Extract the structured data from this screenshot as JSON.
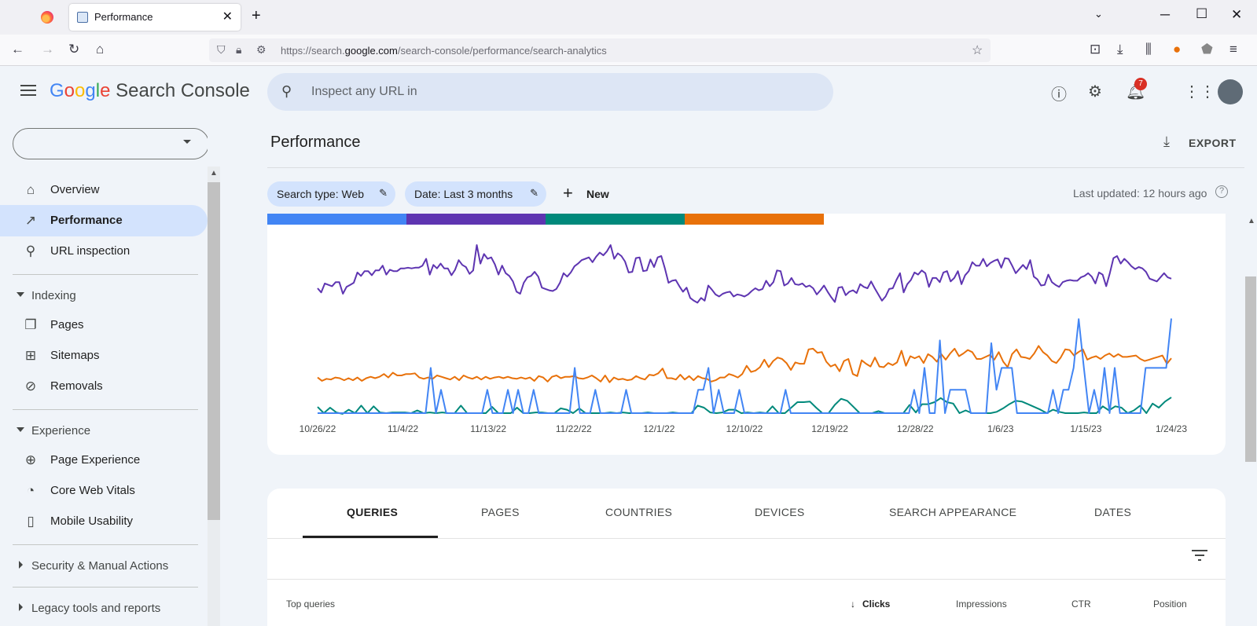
{
  "browser": {
    "tab_title": "Performance",
    "tab_close": "✕",
    "new_tab": "+",
    "url_prefix": "https://search.",
    "url_domain": "google.com",
    "url_path": "/search-console/performance/search-analytics"
  },
  "header": {
    "logo": {
      "g1": "G",
      "g2": "o",
      "g3": "o",
      "g4": "g",
      "g5": "l",
      "g6": "e",
      "product": "Search Console"
    },
    "search_placeholder": "Inspect any URL in",
    "notification_count": "7"
  },
  "sidebar": {
    "property_value": "",
    "items": [
      {
        "label": "Overview"
      },
      {
        "label": "Performance"
      },
      {
        "label": "URL inspection"
      }
    ],
    "indexing": {
      "header": "Indexing",
      "items": [
        {
          "label": "Pages"
        },
        {
          "label": "Sitemaps"
        },
        {
          "label": "Removals"
        }
      ]
    },
    "experience": {
      "header": "Experience",
      "items": [
        {
          "label": "Page Experience"
        },
        {
          "label": "Core Web Vitals"
        },
        {
          "label": "Mobile Usability"
        }
      ]
    },
    "security": "Security & Manual Actions",
    "legacy": "Legacy tools and reports"
  },
  "main": {
    "title": "Performance",
    "export": "EXPORT",
    "chips": [
      {
        "label": "Search type: Web"
      },
      {
        "label": "Date: Last 3 months"
      }
    ],
    "new_label": "New",
    "last_updated": "Last updated: 12 hours ago"
  },
  "metric_colors": [
    "#4285f4",
    "#5e35b1",
    "#00897b",
    "#e8710a"
  ],
  "chart_data": {
    "type": "line",
    "x_ticks": [
      "10/26/22",
      "11/4/22",
      "11/13/22",
      "11/22/22",
      "12/1/22",
      "12/10/22",
      "12/19/22",
      "12/28/22",
      "1/6/23",
      "1/15/23",
      "1/24/23"
    ],
    "series": [
      {
        "color": "#5e35b1",
        "values": [
          63,
          69,
          56,
          58,
          60,
          54,
          54,
          71,
          61,
          58,
          55,
          40,
          45,
          38,
          38,
          44,
          37,
          37,
          30,
          43,
          36,
          38,
          38,
          34,
          34,
          33,
          34,
          33,
          33,
          30,
          20,
          43,
          29,
          34,
          27,
          34,
          34,
          44,
          36,
          22,
          29,
          32,
          42,
          37,
          0,
          27,
          13,
          20,
          18,
          28,
          43,
          30,
          41,
          45,
          53,
          68,
          71,
          55,
          47,
          45,
          39,
          46,
          62,
          64,
          66,
          67,
          64,
          55,
          41,
          46,
          40,
          31,
          27,
          22,
          20,
          18,
          25,
          17,
          11,
          15,
          9,
          0,
          20,
          12,
          16,
          24,
          40,
          39,
          19,
          18,
          38,
          37,
          21,
          32,
          18,
          16,
          34,
          55,
          52,
          51,
          60,
          68,
          62,
          77,
          81,
          84,
          77,
          81,
          59,
          65,
          72,
          75,
          71,
          69,
          68,
          75,
          72,
          73,
          75,
          72,
          67,
          63,
          66,
          64,
          52,
          60,
          54,
          37,
          38,
          59,
          56,
          48,
          57,
          58,
          56,
          61,
          59,
          63,
          72,
          66,
          59,
          68,
          76,
          83,
          62,
          61,
          73,
          68,
          66,
          70,
          57,
          61,
          63,
          53,
          63,
          72,
          81,
          75,
          64,
          63,
          51,
          41,
          69,
          57,
          51,
          40,
          43,
          37,
          41,
          61,
          48,
          48,
          54,
          40,
          38,
          53,
          48,
          38,
          57,
          44,
          38,
          25,
          30,
          30,
          20,
          31,
          26,
          23,
          21,
          33,
          19,
          20,
          30,
          41,
          35,
          29,
          35,
          22,
          46,
          50,
          59,
          58,
          43,
          54,
          58,
          61,
          54,
          52,
          51,
          52,
          52,
          47,
          45,
          41,
          46,
          56,
          40,
          43,
          60,
          41,
          19,
          16,
          27,
          20,
          25,
          31,
          35,
          32,
          34,
          39,
          49,
          51,
          53,
          47,
          41,
          47,
          49
        ]
      },
      {
        "color": "#e8710a",
        "values": [
          193,
          198,
          195,
          196,
          193,
          194,
          197,
          194,
          197,
          193,
          198,
          194,
          192,
          194,
          192,
          188,
          193,
          186,
          190,
          190,
          188,
          188,
          187,
          193,
          195,
          193,
          195,
          190,
          192,
          194,
          196,
          192,
          197,
          190,
          193,
          195,
          192,
          196,
          192,
          195,
          193,
          192,
          194,
          192,
          194,
          195,
          193,
          195,
          193,
          198,
          191,
          193,
          199,
          192,
          190,
          194,
          192,
          192,
          191,
          194,
          195,
          193,
          190,
          194,
          199,
          190,
          200,
          193,
          196,
          195,
          197,
          196,
          191,
          194,
          196,
          189,
          190,
          187,
          180,
          194,
          194,
          196,
          189,
          196,
          191,
          197,
          191,
          194,
          195,
          199,
          197,
          193,
          193,
          188,
          190,
          193,
          188,
          176,
          185,
          183,
          178,
          167,
          178,
          169,
          164,
          166,
          172,
          182,
          171,
          173,
          173,
          152,
          151,
          157,
          156,
          170,
          177,
          174,
          184,
          169,
          166,
          188,
          191,
          168,
          173,
          177,
          164,
          177,
          178,
          172,
          175,
          171,
          154,
          176,
          162,
          165,
          162,
          172,
          159,
          163,
          170,
          159,
          167,
          158,
          151,
          162,
          158,
          153,
          156,
          166,
          166,
          163,
          160,
          167,
          156,
          170,
          178,
          159,
          152,
          163,
          164,
          166,
          158,
          147,
          156,
          161,
          169,
          172,
          164,
          152,
          153,
          161,
          156,
          152,
          167,
          164,
          162,
          166,
          161,
          158,
          163,
          159,
          163,
          163,
          162,
          161,
          166,
          169,
          167,
          165,
          163,
          161,
          173,
          165
        ]
      },
      {
        "color": "#00897b",
        "values": [
          236,
          245,
          237,
          244,
          246,
          240,
          245,
          234,
          245,
          235,
          244,
          245,
          244,
          244,
          244,
          245,
          241,
          245,
          244,
          245,
          244,
          245,
          245,
          234,
          245,
          245,
          245,
          245,
          236,
          245,
          245,
          245,
          237,
          245,
          245,
          244,
          244,
          245,
          245,
          238,
          240,
          245,
          238,
          245,
          245,
          245,
          245,
          244,
          245,
          244,
          245,
          245,
          245,
          244,
          245,
          245,
          245,
          244,
          245,
          245,
          245,
          234,
          237,
          244,
          245,
          244,
          240,
          240,
          245,
          244,
          245,
          244,
          245,
          235,
          245,
          245,
          237,
          229,
          229,
          228,
          237,
          245,
          245,
          233,
          224,
          227,
          236,
          245,
          245,
          245,
          242,
          245,
          245,
          245,
          245,
          233,
          244,
          232,
          232,
          229,
          223,
          229,
          231,
          245,
          241,
          245,
          245,
          245,
          245,
          243,
          238,
          232,
          227,
          228,
          232,
          236,
          240,
          245,
          240,
          243,
          245,
          245,
          245,
          244,
          245,
          245,
          235,
          241,
          235,
          237,
          245,
          241,
          234,
          245,
          231,
          237,
          228,
          222
        ]
      },
      {
        "color": "#4285f4",
        "values": [
          245,
          245,
          245,
          245,
          245,
          245,
          245,
          245,
          245,
          245,
          245,
          245,
          245,
          245,
          245,
          245,
          245,
          245,
          245,
          245,
          245,
          245,
          179,
          245,
          211,
          245,
          245,
          245,
          245,
          245,
          245,
          245,
          245,
          211,
          245,
          245,
          245,
          211,
          245,
          211,
          245,
          245,
          211,
          245,
          245,
          245,
          245,
          245,
          245,
          245,
          179,
          245,
          245,
          245,
          211,
          245,
          245,
          245,
          245,
          245,
          211,
          245,
          245,
          245,
          245,
          245,
          245,
          245,
          245,
          245,
          245,
          245,
          245,
          245,
          211,
          211,
          179,
          245,
          211,
          245,
          245,
          245,
          211,
          245,
          245,
          245,
          245,
          245,
          245,
          245,
          245,
          211,
          245,
          245,
          245,
          245,
          245,
          245,
          245,
          245,
          245,
          245,
          245,
          245,
          245,
          245,
          245,
          245,
          245,
          245,
          245,
          245,
          245,
          245,
          245,
          245,
          211,
          245,
          179,
          245,
          245,
          139,
          245,
          211,
          211,
          211,
          211,
          245,
          245,
          245,
          245,
          143,
          211,
          179,
          179,
          179,
          245,
          245,
          245,
          245,
          245,
          245,
          245,
          211,
          245,
          211,
          211,
          179,
          108,
          179,
          245,
          211,
          245,
          179,
          245,
          179,
          245,
          245,
          245,
          245,
          245,
          179,
          179,
          179,
          179,
          179,
          107
        ]
      }
    ]
  },
  "table": {
    "tabs": [
      {
        "label": "QUERIES"
      },
      {
        "label": "PAGES"
      },
      {
        "label": "COUNTRIES"
      },
      {
        "label": "DEVICES"
      },
      {
        "label": "SEARCH APPEARANCE"
      },
      {
        "label": "DATES"
      }
    ],
    "columns": [
      {
        "label": "Top queries"
      },
      {
        "label": "Clicks"
      },
      {
        "label": "Impressions"
      },
      {
        "label": "CTR"
      },
      {
        "label": "Position"
      }
    ]
  }
}
